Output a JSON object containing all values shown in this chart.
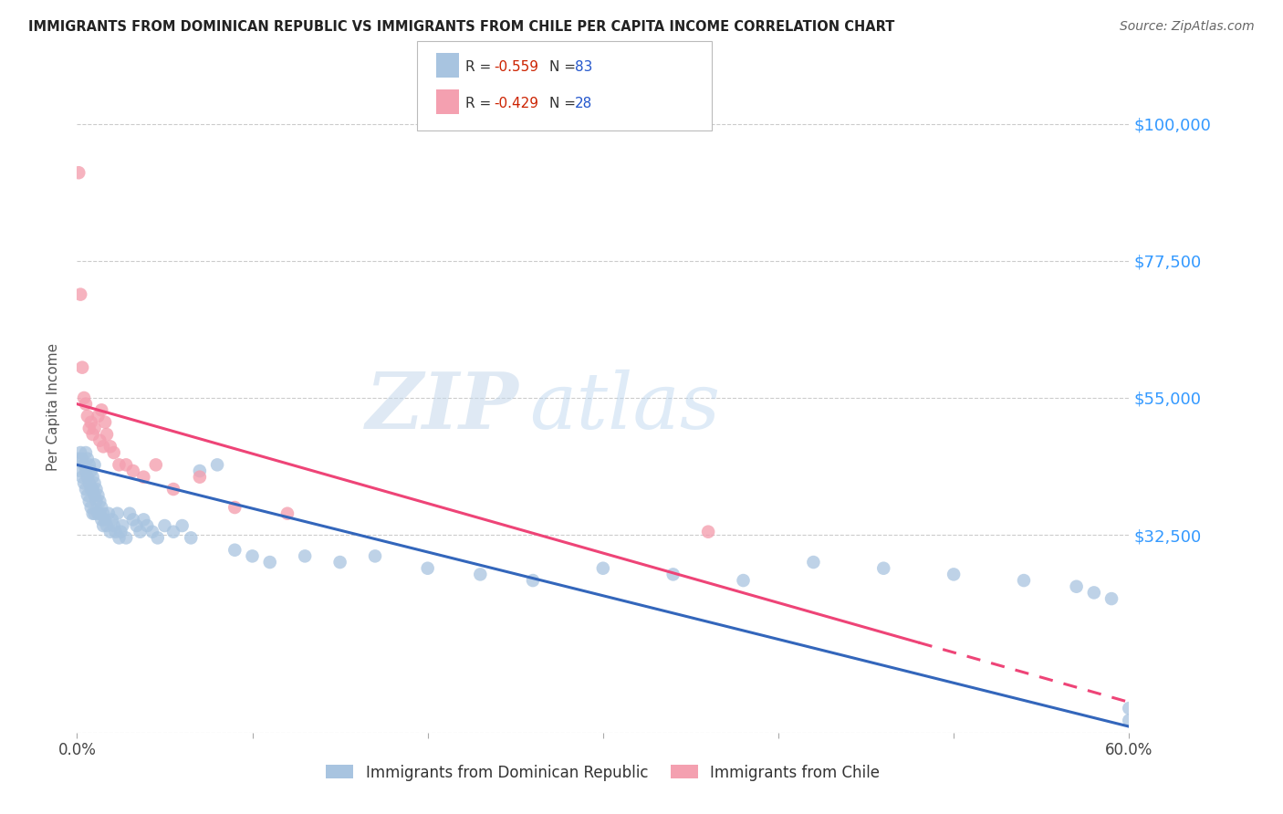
{
  "title": "IMMIGRANTS FROM DOMINICAN REPUBLIC VS IMMIGRANTS FROM CHILE PER CAPITA INCOME CORRELATION CHART",
  "source": "Source: ZipAtlas.com",
  "ylabel": "Per Capita Income",
  "watermark_zip": "ZIP",
  "watermark_atlas": "atlas",
  "xlim": [
    0.0,
    0.6
  ],
  "ylim": [
    0,
    107000
  ],
  "yticks": [
    0,
    32500,
    55000,
    77500,
    100000
  ],
  "ytick_labels": [
    "",
    "$32,500",
    "$55,000",
    "$77,500",
    "$100,000"
  ],
  "xticks": [
    0.0,
    0.1,
    0.2,
    0.3,
    0.4,
    0.5,
    0.6
  ],
  "xtick_labels": [
    "0.0%",
    "",
    "",
    "",
    "",
    "",
    "60.0%"
  ],
  "series1_label": "Immigrants from Dominican Republic",
  "series2_label": "Immigrants from Chile",
  "series1_color": "#a8c4e0",
  "series2_color": "#f4a0b0",
  "series1_R": "-0.559",
  "series1_N": "83",
  "series2_R": "-0.429",
  "series2_N": "28",
  "legend_R_color": "#cc2200",
  "legend_N_color": "#2255cc",
  "axis_label_color": "#3399ff",
  "background_color": "#ffffff",
  "series1_line_color": "#3366bb",
  "series2_line_color": "#ee4477",
  "grid_color": "#cccccc",
  "title_color": "#222222",
  "source_color": "#666666",
  "ylabel_color": "#555555",
  "series1_x": [
    0.001,
    0.002,
    0.002,
    0.003,
    0.003,
    0.004,
    0.004,
    0.005,
    0.005,
    0.005,
    0.006,
    0.006,
    0.006,
    0.007,
    0.007,
    0.007,
    0.008,
    0.008,
    0.008,
    0.009,
    0.009,
    0.009,
    0.01,
    0.01,
    0.01,
    0.01,
    0.011,
    0.011,
    0.012,
    0.012,
    0.013,
    0.013,
    0.014,
    0.014,
    0.015,
    0.015,
    0.016,
    0.017,
    0.018,
    0.019,
    0.02,
    0.021,
    0.022,
    0.023,
    0.024,
    0.025,
    0.026,
    0.028,
    0.03,
    0.032,
    0.034,
    0.036,
    0.038,
    0.04,
    0.043,
    0.046,
    0.05,
    0.055,
    0.06,
    0.065,
    0.07,
    0.08,
    0.09,
    0.1,
    0.11,
    0.13,
    0.15,
    0.17,
    0.2,
    0.23,
    0.26,
    0.3,
    0.34,
    0.38,
    0.42,
    0.46,
    0.5,
    0.54,
    0.57,
    0.58,
    0.59,
    0.6,
    0.6
  ],
  "series1_y": [
    45000,
    46000,
    43000,
    45000,
    42000,
    44000,
    41000,
    46000,
    43000,
    40000,
    45000,
    42000,
    39000,
    44000,
    41000,
    38000,
    43000,
    40000,
    37000,
    42000,
    40000,
    36000,
    44000,
    41000,
    39000,
    36000,
    40000,
    38000,
    39000,
    36000,
    38000,
    36000,
    37000,
    35000,
    36000,
    34000,
    35000,
    34000,
    36000,
    33000,
    35000,
    34000,
    33000,
    36000,
    32000,
    33000,
    34000,
    32000,
    36000,
    35000,
    34000,
    33000,
    35000,
    34000,
    33000,
    32000,
    34000,
    33000,
    34000,
    32000,
    43000,
    44000,
    30000,
    29000,
    28000,
    29000,
    28000,
    29000,
    27000,
    26000,
    25000,
    27000,
    26000,
    25000,
    28000,
    27000,
    26000,
    25000,
    24000,
    23000,
    22000,
    4000,
    2000
  ],
  "series2_x": [
    0.001,
    0.002,
    0.003,
    0.004,
    0.005,
    0.006,
    0.007,
    0.008,
    0.009,
    0.01,
    0.012,
    0.013,
    0.014,
    0.015,
    0.016,
    0.017,
    0.019,
    0.021,
    0.024,
    0.028,
    0.032,
    0.038,
    0.045,
    0.055,
    0.07,
    0.09,
    0.12,
    0.36
  ],
  "series2_y": [
    92000,
    72000,
    60000,
    55000,
    54000,
    52000,
    50000,
    51000,
    49000,
    50000,
    52000,
    48000,
    53000,
    47000,
    51000,
    49000,
    47000,
    46000,
    44000,
    44000,
    43000,
    42000,
    44000,
    40000,
    42000,
    37000,
    36000,
    33000
  ],
  "line1_x0": 0.0,
  "line1_y0": 44000,
  "line1_x1": 0.6,
  "line1_y1": 1000,
  "line2_x0": 0.0,
  "line2_y0": 54000,
  "line2_x1": 0.6,
  "line2_y1": 5000,
  "line2_dash_start": 0.48
}
